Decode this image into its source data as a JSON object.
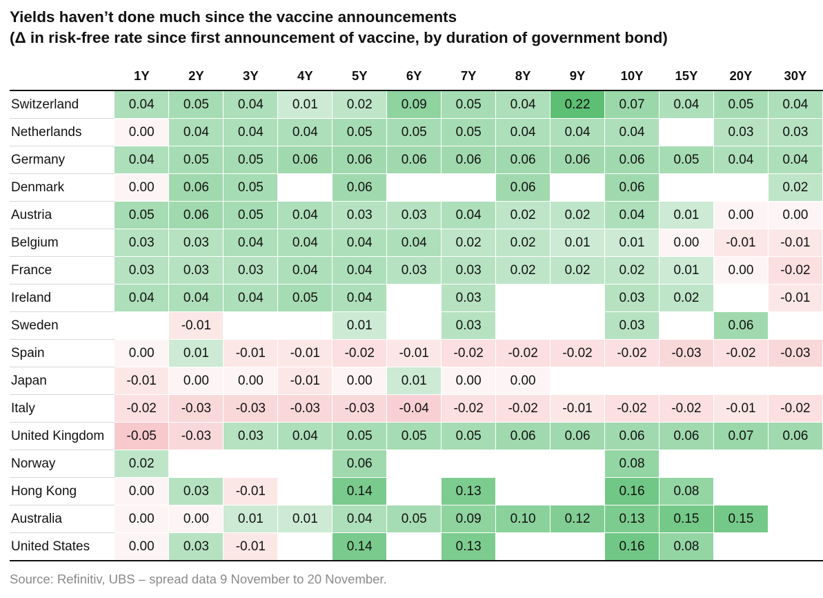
{
  "chart_data": {
    "type": "heatmap",
    "title": "Yields haven’t done much since the vaccine announcements",
    "subtitle": "(Δ in risk-free rate since first announcement of vaccine, by duration of government bond)",
    "columns": [
      "1Y",
      "2Y",
      "3Y",
      "4Y",
      "5Y",
      "6Y",
      "7Y",
      "8Y",
      "9Y",
      "10Y",
      "15Y",
      "20Y",
      "30Y"
    ],
    "rows": [
      {
        "label": "Switzerland",
        "values": [
          0.04,
          0.05,
          0.04,
          0.01,
          0.02,
          0.09,
          0.05,
          0.04,
          0.22,
          0.07,
          0.04,
          0.05,
          0.04
        ]
      },
      {
        "label": "Netherlands",
        "values": [
          0.0,
          0.04,
          0.04,
          0.04,
          0.05,
          0.05,
          0.05,
          0.04,
          0.04,
          0.04,
          null,
          0.03,
          0.03
        ]
      },
      {
        "label": "Germany",
        "values": [
          0.04,
          0.05,
          0.05,
          0.06,
          0.06,
          0.06,
          0.06,
          0.06,
          0.06,
          0.06,
          0.05,
          0.04,
          0.04
        ]
      },
      {
        "label": "Denmark",
        "values": [
          0.0,
          0.06,
          0.05,
          null,
          0.06,
          null,
          null,
          0.06,
          null,
          0.06,
          null,
          null,
          0.02
        ]
      },
      {
        "label": "Austria",
        "values": [
          0.05,
          0.06,
          0.05,
          0.04,
          0.03,
          0.03,
          0.04,
          0.02,
          0.02,
          0.04,
          0.01,
          0.0,
          0.0
        ]
      },
      {
        "label": "Belgium",
        "values": [
          0.03,
          0.03,
          0.04,
          0.04,
          0.04,
          0.04,
          0.02,
          0.02,
          0.01,
          0.01,
          0.0,
          -0.01,
          -0.01
        ]
      },
      {
        "label": "France",
        "values": [
          0.03,
          0.03,
          0.03,
          0.04,
          0.04,
          0.03,
          0.03,
          0.02,
          0.02,
          0.02,
          0.01,
          0.0,
          -0.02
        ]
      },
      {
        "label": "Ireland",
        "values": [
          0.04,
          0.04,
          0.04,
          0.05,
          0.04,
          null,
          0.03,
          null,
          null,
          0.03,
          0.02,
          null,
          -0.01
        ]
      },
      {
        "label": "Sweden",
        "values": [
          null,
          -0.01,
          null,
          null,
          0.01,
          null,
          0.03,
          null,
          null,
          0.03,
          null,
          0.06,
          null
        ]
      },
      {
        "label": "Spain",
        "values": [
          0.0,
          0.01,
          -0.01,
          -0.01,
          -0.02,
          -0.01,
          -0.02,
          -0.02,
          -0.02,
          -0.02,
          -0.03,
          -0.02,
          -0.03
        ]
      },
      {
        "label": "Japan",
        "values": [
          -0.01,
          0.0,
          0.0,
          -0.01,
          0.0,
          0.01,
          0.0,
          0.0,
          null,
          null,
          null,
          null,
          null
        ]
      },
      {
        "label": "Italy",
        "values": [
          -0.02,
          -0.03,
          -0.03,
          -0.03,
          -0.03,
          -0.04,
          -0.02,
          -0.02,
          -0.01,
          -0.02,
          -0.02,
          -0.01,
          -0.02
        ]
      },
      {
        "label": "United Kingdom",
        "values": [
          -0.05,
          -0.03,
          0.03,
          0.04,
          0.05,
          0.05,
          0.05,
          0.06,
          0.06,
          0.06,
          0.06,
          0.07,
          0.06
        ]
      },
      {
        "label": "Norway",
        "values": [
          0.02,
          null,
          null,
          null,
          0.06,
          null,
          null,
          null,
          null,
          0.08,
          null,
          null,
          null
        ]
      },
      {
        "label": "Hong Kong",
        "values": [
          0.0,
          0.03,
          -0.01,
          null,
          0.14,
          null,
          0.13,
          null,
          null,
          0.16,
          0.08,
          null,
          null
        ]
      },
      {
        "label": "Australia",
        "values": [
          0.0,
          0.0,
          0.01,
          0.01,
          0.04,
          0.05,
          0.09,
          0.1,
          0.12,
          0.13,
          0.15,
          0.15,
          null
        ]
      },
      {
        "label": "United States",
        "values": [
          0.0,
          0.03,
          -0.01,
          null,
          0.14,
          null,
          0.13,
          null,
          null,
          0.16,
          0.08,
          null,
          null
        ]
      }
    ],
    "source": "Source: Refinitiv, UBS – spread data 9 November to 20 November.",
    "colors": {
      "positive_max": "#5cbf73",
      "positive_min": "#eaf6ee",
      "zero": "#fdf5f5",
      "negative_max": "#f7c9cd",
      "negative_min": "#fdeeee"
    }
  }
}
